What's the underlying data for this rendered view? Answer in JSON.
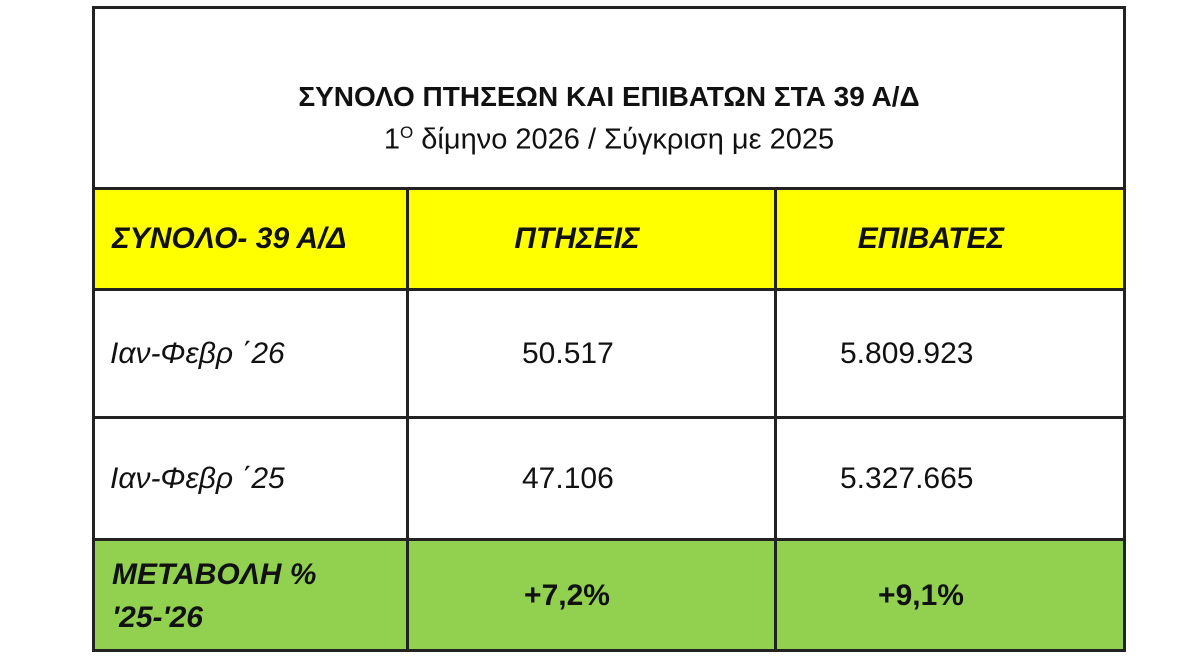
{
  "title": "ΣΥΝΟΛΟ ΠΤΗΣΕΩΝ ΚΑΙ ΕΠΙΒΑΤΩΝ ΣΤΑ 39 Α/Δ",
  "subtitle": {
    "number": "1",
    "superscript": "Ο",
    "text": "δίμηνο 2026 / Σύγκριση με 2025"
  },
  "table": {
    "header": [
      "ΣΥΝΟΛΟ- 39 Α/Δ",
      "ΠΤΗΣΕΙΣ",
      "ΕΠΙΒΑΤΕΣ"
    ],
    "rows": [
      [
        "Ιαν-Φεβρ ΄26",
        "50.517",
        "5.809.923"
      ],
      [
        "Ιαν-Φεβρ ΄25",
        "47.106",
        "5.327.665"
      ],
      [
        "ΜΕΤΑΒΟΛΗ % '25-'26",
        "+7,2%",
        "+9,1%"
      ]
    ]
  }
}
